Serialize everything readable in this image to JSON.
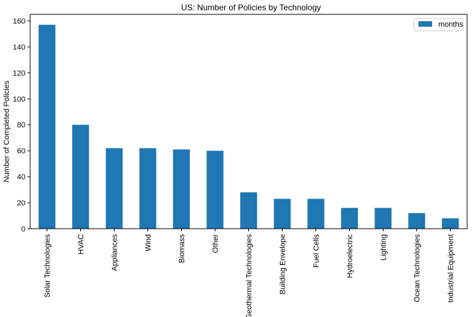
{
  "chart_data": {
    "type": "bar",
    "title": "US: Number of Policies by Technology",
    "xlabel": "",
    "ylabel": "Number of Completed Policies",
    "categories": [
      "Solar Technologies",
      "HVAC",
      "Appliances",
      "Wind",
      "Biomass",
      "Other",
      "Geothermal Technologies",
      "Building Envelope",
      "Fuel Cells",
      "Hydroelectric",
      "Lighting",
      "Ocean Technologies",
      "Industrial Equipment"
    ],
    "series": [
      {
        "name": "months",
        "values": [
          157,
          80,
          62,
          62,
          61,
          60,
          28,
          23,
          23,
          16,
          16,
          12,
          8
        ],
        "color": "#1f77b4"
      }
    ],
    "ylim": [
      0,
      165
    ],
    "yticks": [
      0,
      20,
      40,
      60,
      80,
      100,
      120,
      140,
      160
    ],
    "grid": false,
    "legend_position": "top-right"
  }
}
